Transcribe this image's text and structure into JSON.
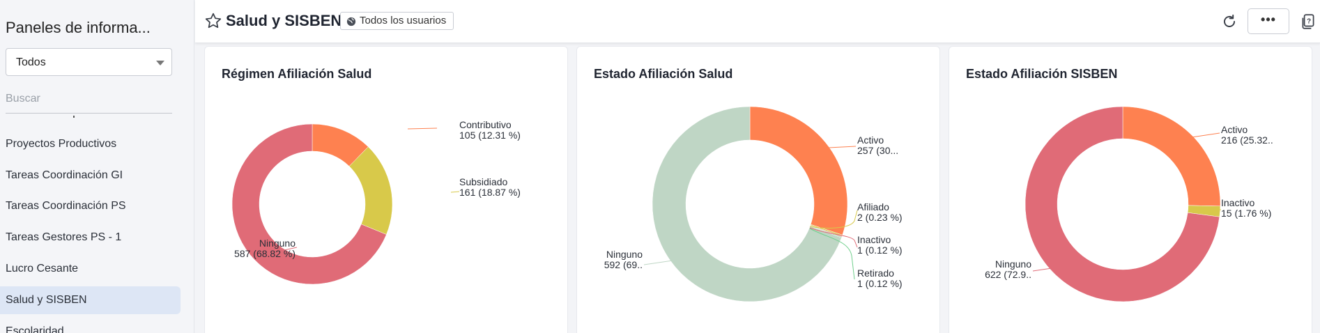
{
  "sidebar": {
    "title": "Paneles de informa...",
    "filter_value": "Todos",
    "search_placeholder": "Buscar",
    "items": [
      {
        "label": "Proyectos Productivos",
        "active": false
      },
      {
        "label": "Tareas Coordinación GI",
        "active": false
      },
      {
        "label": "Tareas Coordinación PS",
        "active": false
      },
      {
        "label": "Tareas Gestores PS - 1",
        "active": false
      },
      {
        "label": "Lucro Cesante",
        "active": false
      },
      {
        "label": "Salud y SISBEN",
        "active": true
      },
      {
        "label": "Escolaridad",
        "active": false
      }
    ]
  },
  "header": {
    "title": "Salud y SISBEN",
    "audience": "Todos los usuarios",
    "more_label": "•••"
  },
  "chart_data": [
    {
      "type": "pie",
      "title": "Régimen Afiliación Salud",
      "slices": [
        {
          "name": "Contributivo",
          "value": 105,
          "pct_label": "105 (12.31 %)",
          "color": "#fe8150"
        },
        {
          "name": "Subsidiado",
          "value": 161,
          "pct_label": "161 (18.87 %)",
          "color": "#d8c94a"
        },
        {
          "name": "Ninguno",
          "value": 587,
          "pct_label": "587 (68.82 %)",
          "color": "#e06b77"
        }
      ]
    },
    {
      "type": "pie",
      "title": "Estado Afiliación Salud",
      "slices": [
        {
          "name": "Activo",
          "value": 257,
          "pct_label": "257 (30...",
          "color": "#fe8150"
        },
        {
          "name": "Afiliado",
          "value": 2,
          "pct_label": "2 (0.23 %)",
          "color": "#d8c94a"
        },
        {
          "name": "Inactivo",
          "value": 1,
          "pct_label": "1 (0.12 %)",
          "color": "#e06b77"
        },
        {
          "name": "Retirado",
          "value": 1,
          "pct_label": "1 (0.12 %)",
          "color": "#6fcf8c"
        },
        {
          "name": "Ninguno",
          "value": 592,
          "pct_label": "592 (69..",
          "color": "#bfd6c5"
        }
      ]
    },
    {
      "type": "pie",
      "title": "Estado Afiliación SISBEN",
      "slices": [
        {
          "name": "Activo",
          "value": 216,
          "pct_label": "216 (25.32..",
          "color": "#fe8150"
        },
        {
          "name": "Inactivo",
          "value": 15,
          "pct_label": "15 (1.76 %)",
          "color": "#d8c94a"
        },
        {
          "name": "Ninguno",
          "value": 622,
          "pct_label": "622 (72.9..",
          "color": "#e06b77"
        }
      ]
    }
  ]
}
